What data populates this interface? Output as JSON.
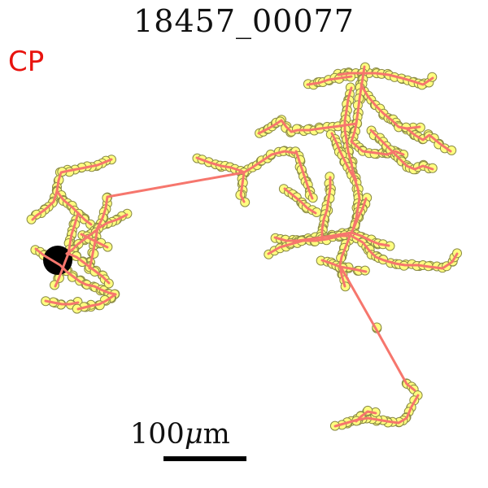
{
  "title": "18457_00077",
  "tag": {
    "text": "CP",
    "color": "#e8130e"
  },
  "scale_bar": {
    "value": "100",
    "unit_prefix": "μ",
    "unit_suffix": "m"
  },
  "colors": {
    "track": "#f6766d",
    "node_fill": "#ffff80",
    "node_stroke": "#8a8a45",
    "origin": "#000000"
  }
}
